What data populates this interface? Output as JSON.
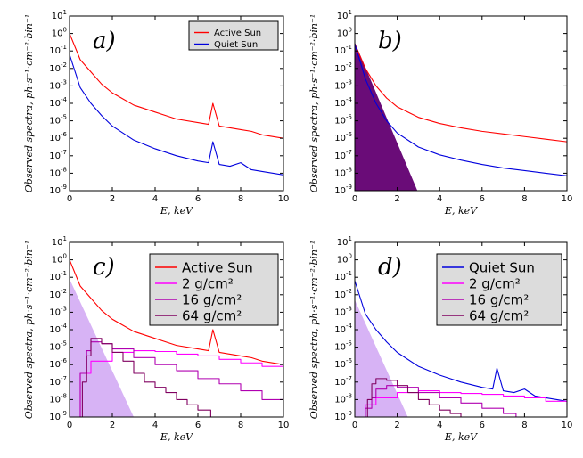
{
  "figure": {
    "y_axis_label": "Observed spectra, ph·s⁻¹·cm⁻²·bin⁻¹",
    "x_axis_label": "E, keV"
  },
  "colors": {
    "active": "#ff0000",
    "quiet": "#0000dd",
    "g2": "#ff00ff",
    "g16": "#b000b0",
    "g64": "#800060",
    "fill_light": "#d7b3f5",
    "fill_magenta": "#ea66f8",
    "fill_dark": "#6a0c78"
  },
  "chart_data": [
    {
      "panel": "a)",
      "type": "line",
      "yscale": "log",
      "xlim": [
        0,
        10
      ],
      "ylim_exp": [
        -9,
        1
      ],
      "x_ticks": [
        "0",
        "2",
        "4",
        "6",
        "8",
        "10"
      ],
      "legend": [
        "Active Sun",
        "Quiet Sun"
      ],
      "series": [
        {
          "name": "Active Sun",
          "x": [
            0,
            0.5,
            1,
            1.5,
            2,
            3,
            4,
            5,
            6,
            6.5,
            6.7,
            7,
            7.5,
            8,
            8.5,
            9,
            10
          ],
          "log10_y": [
            0,
            -1.5,
            -2.2,
            -2.9,
            -3.4,
            -4.1,
            -4.5,
            -4.9,
            -5.1,
            -5.2,
            -4,
            -5.3,
            -5.4,
            -5.5,
            -5.6,
            -5.8,
            -6
          ]
        },
        {
          "name": "Quiet Sun",
          "x": [
            0,
            0.5,
            1,
            1.5,
            2,
            3,
            4,
            5,
            6,
            6.5,
            6.7,
            7,
            7.5,
            8,
            8.5,
            9,
            10
          ],
          "log10_y": [
            -1.2,
            -3.1,
            -4,
            -4.7,
            -5.3,
            -6.1,
            -6.6,
            -7,
            -7.3,
            -7.4,
            -6.2,
            -7.5,
            -7.6,
            -7.4,
            -7.8,
            -7.9,
            -8.1
          ]
        }
      ]
    },
    {
      "panel": "b)",
      "type": "line",
      "yscale": "log",
      "xlim": [
        0,
        10
      ],
      "ylim_exp": [
        -9,
        1
      ],
      "x_ticks": [
        "0",
        "2",
        "4",
        "6",
        "8",
        "10"
      ],
      "series": [
        {
          "name": "Active Sun",
          "x": [
            0,
            0.5,
            1,
            1.5,
            2,
            3,
            4,
            5,
            6,
            7,
            8,
            9,
            10
          ],
          "log10_y": [
            -0.6,
            -2,
            -3,
            -3.7,
            -4.2,
            -4.8,
            -5.15,
            -5.4,
            -5.6,
            -5.75,
            -5.9,
            -6.05,
            -6.2
          ]
        },
        {
          "name": "Quiet Sun",
          "x": [
            0,
            0.5,
            1,
            1.5,
            2,
            3,
            4,
            5,
            6,
            7,
            8,
            9,
            10
          ],
          "log10_y": [
            -0.6,
            -2.6,
            -4,
            -5,
            -5.7,
            -6.5,
            -6.95,
            -7.25,
            -7.5,
            -7.7,
            -7.85,
            -8,
            -8.15
          ]
        }
      ],
      "filled_areas": [
        {
          "name": "magenta band",
          "x_start": 0,
          "x_end_bottom": 2.55,
          "log10_y_top": -0.5
        },
        {
          "name": "dark band",
          "x_start": 0,
          "x_end_bottom": 2.95,
          "log10_y_top": -0.5
        }
      ]
    },
    {
      "panel": "c)",
      "type": "line",
      "yscale": "log",
      "xlim": [
        0,
        10
      ],
      "ylim_exp": [
        -9,
        1
      ],
      "x_ticks": [
        "0",
        "2",
        "4",
        "6",
        "8",
        "10"
      ],
      "legend": [
        "Active Sun",
        "2 g/cm²",
        "16 g/cm²",
        "64 g/cm²"
      ],
      "series": [
        {
          "name": "Active Sun",
          "x": [
            0,
            0.5,
            1,
            1.5,
            2,
            3,
            4,
            5,
            6,
            6.5,
            6.7,
            7,
            7.5,
            8,
            8.5,
            9,
            10
          ],
          "log10_y": [
            0,
            -1.5,
            -2.2,
            -2.9,
            -3.4,
            -4.1,
            -4.5,
            -4.9,
            -5.1,
            -5.2,
            -4,
            -5.3,
            -5.4,
            -5.5,
            -5.6,
            -5.8,
            -6
          ]
        },
        {
          "name": "2 g/cm²",
          "x": [
            0.15,
            0.5,
            1,
            2,
            3,
            4,
            5,
            6,
            7,
            8,
            9,
            10
          ],
          "log10_y": [
            -9,
            -6.5,
            -5.8,
            -5.3,
            -5.2,
            -5.25,
            -5.4,
            -5.5,
            -5.7,
            -5.9,
            -6.1,
            -6.3
          ]
        },
        {
          "name": "16 g/cm²",
          "x": [
            0.3,
            0.5,
            0.8,
            1,
            1.5,
            2,
            3,
            4,
            5,
            6,
            7,
            8,
            9,
            10
          ],
          "log10_y": [
            -9,
            -6.5,
            -5.2,
            -4.7,
            -4.8,
            -5.1,
            -5.6,
            -6,
            -6.35,
            -6.8,
            -7.1,
            -7.5,
            -8,
            -8.8
          ]
        },
        {
          "name": "64 g/cm²",
          "x": [
            0.4,
            0.6,
            0.8,
            1,
            1.5,
            2,
            2.5,
            3,
            3.5,
            4,
            4.5,
            5,
            5.5,
            6,
            6.6
          ],
          "log10_y": [
            -9,
            -7,
            -5.5,
            -4.5,
            -4.8,
            -5.3,
            -5.8,
            -6.5,
            -7,
            -7.3,
            -7.6,
            -8,
            -8.3,
            -8.6,
            -9
          ]
        }
      ],
      "filled_areas": [
        {
          "name": "lilac band",
          "x_start": 0,
          "x_end_bottom": 3,
          "log10_y_top": -1.1
        }
      ]
    },
    {
      "panel": "d)",
      "type": "line",
      "yscale": "log",
      "xlim": [
        0,
        10
      ],
      "ylim_exp": [
        -9,
        1
      ],
      "x_ticks": [
        "0",
        "2",
        "4",
        "6",
        "8",
        "10"
      ],
      "legend": [
        "Quiet Sun",
        "2 g/cm²",
        "16 g/cm²",
        "64 g/cm²"
      ],
      "series": [
        {
          "name": "Quiet Sun",
          "x": [
            0,
            0.5,
            1,
            1.5,
            2,
            3,
            4,
            5,
            6,
            6.5,
            6.7,
            7,
            7.5,
            8,
            8.5,
            9,
            10
          ],
          "log10_y": [
            -1.2,
            -3.1,
            -4,
            -4.7,
            -5.3,
            -6.1,
            -6.6,
            -7,
            -7.3,
            -7.4,
            -6.2,
            -7.5,
            -7.6,
            -7.4,
            -7.8,
            -7.9,
            -8.1
          ]
        },
        {
          "name": "2 g/cm²",
          "x": [
            0.15,
            0.5,
            1,
            2,
            3,
            4,
            5,
            6,
            7,
            8,
            9,
            10
          ],
          "log10_y": [
            -9,
            -8.3,
            -7.9,
            -7.6,
            -7.5,
            -7.6,
            -7.65,
            -7.7,
            -7.8,
            -7.9,
            -8.1,
            -8.3
          ]
        },
        {
          "name": "16 g/cm²",
          "x": [
            0.3,
            0.5,
            0.8,
            1,
            1.5,
            2,
            3,
            4,
            5,
            6,
            7,
            7.6
          ],
          "log10_y": [
            -9,
            -8.5,
            -7.9,
            -7.4,
            -7.2,
            -7.3,
            -7.6,
            -7.9,
            -8.2,
            -8.5,
            -8.8,
            -9
          ]
        },
        {
          "name": "64 g/cm²",
          "x": [
            0.4,
            0.6,
            0.8,
            1,
            1.5,
            2,
            2.5,
            3,
            3.5,
            4,
            4.5,
            5,
            5.2
          ],
          "log10_y": [
            -9,
            -8,
            -7.1,
            -6.8,
            -6.9,
            -7.2,
            -7.6,
            -8,
            -8.3,
            -8.6,
            -8.8,
            -9,
            -9
          ]
        }
      ],
      "filled_areas": [
        {
          "name": "lilac band",
          "x_start": 0,
          "x_end_bottom": 2.5,
          "log10_y_top": -2.3
        }
      ]
    }
  ]
}
